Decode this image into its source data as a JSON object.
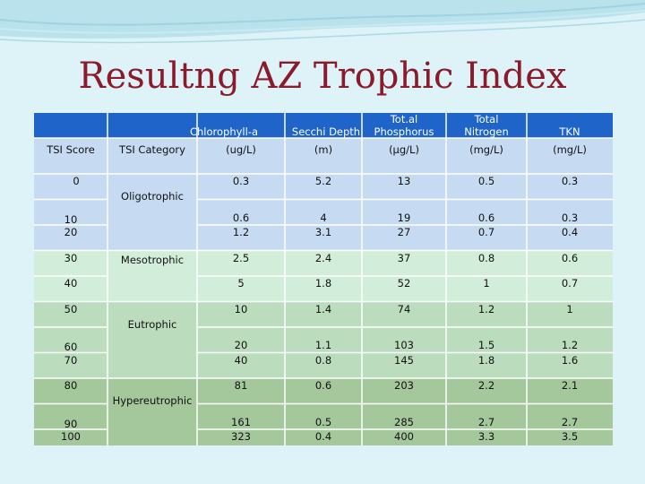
{
  "title": "Resultng AZ Trophic Index",
  "colors": {
    "header_blue": "#1f64c8",
    "oligotrophic": "#c6dbf1",
    "mesotrophic": "#d2edd9",
    "eutrophic": "#bbdcbd",
    "hypereutrophic": "#a4c79c"
  },
  "header": {
    "chlorophyll": "Chlorophyll-a",
    "secchi": "Secchi Depth",
    "phosphorus_line1": "Tot.al",
    "phosphorus_line2": "Phosphorus",
    "nitrogen_line1": "Total",
    "nitrogen_line2": "Nitrogen",
    "tkn": "TKN"
  },
  "subheader": {
    "tsi_score": "TSI Score",
    "tsi_category": "TSI Category",
    "chlorophyll_unit": "(ug/L)",
    "secchi_unit": "(m)",
    "phosphorus_unit": "(μg/L)",
    "nitrogen_unit": "(mg/L)",
    "tkn_unit": "(mg/L)"
  },
  "categories": [
    "Oligotrophic",
    "Mesotrophic",
    "Eutrophic",
    "Hypereutrophic"
  ],
  "rows": [
    {
      "tsi": "0",
      "chl": "0.3",
      "secchi": "5.2",
      "tp": "13",
      "tn": "0.5",
      "tkn": "0.3"
    },
    {
      "tsi": "10",
      "chl": "0.6",
      "secchi": "4",
      "tp": "19",
      "tn": "0.6",
      "tkn": "0.3"
    },
    {
      "tsi": "20",
      "chl": "1.2",
      "secchi": "3.1",
      "tp": "27",
      "tn": "0.7",
      "tkn": "0.4"
    },
    {
      "tsi": "30",
      "chl": "2.5",
      "secchi": "2.4",
      "tp": "37",
      "tn": "0.8",
      "tkn": "0.6"
    },
    {
      "tsi": "40",
      "chl": "5",
      "secchi": "1.8",
      "tp": "52",
      "tn": "1",
      "tkn": "0.7"
    },
    {
      "tsi": "50",
      "chl": "10",
      "secchi": "1.4",
      "tp": "74",
      "tn": "1.2",
      "tkn": "1"
    },
    {
      "tsi": "60",
      "chl": "20",
      "secchi": "1.1",
      "tp": "103",
      "tn": "1.5",
      "tkn": "1.2"
    },
    {
      "tsi": "70",
      "chl": "40",
      "secchi": "0.8",
      "tp": "145",
      "tn": "1.8",
      "tkn": "1.6"
    },
    {
      "tsi": "80",
      "chl": "81",
      "secchi": "0.6",
      "tp": "203",
      "tn": "2.2",
      "tkn": "2.1"
    },
    {
      "tsi": "90",
      "chl": "161",
      "secchi": "0.5",
      "tp": "285",
      "tn": "2.7",
      "tkn": "2.7"
    },
    {
      "tsi": "100",
      "chl": "323",
      "secchi": "0.4",
      "tp": "400",
      "tn": "3.3",
      "tkn": "3.5"
    }
  ]
}
